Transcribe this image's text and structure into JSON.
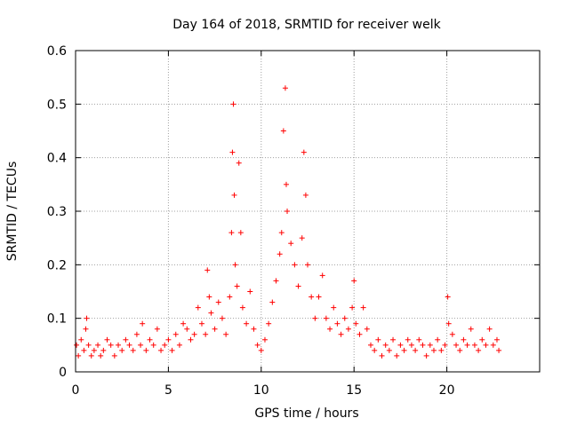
{
  "chart_data": {
    "type": "scatter",
    "title": "Day 164 of 2018, SRMTID for receiver welk",
    "xlabel": "GPS time / hours",
    "ylabel": "SRMTID / TECUs",
    "xlim": [
      0,
      25
    ],
    "ylim": [
      0,
      0.6
    ],
    "xticks": [
      0,
      5,
      10,
      15,
      20
    ],
    "xtick_labels": [
      "0",
      "5",
      "10",
      "15",
      "20"
    ],
    "yticks": [
      0,
      0.1,
      0.2,
      0.3,
      0.4,
      0.5,
      0.6
    ],
    "ytick_labels": [
      "0",
      "0.1",
      "0.2",
      "0.3",
      "0.4",
      "0.5",
      "0.6"
    ],
    "grid": true,
    "marker": "+",
    "color": "#ff0000",
    "series": [
      {
        "name": "SRMTID",
        "points": [
          [
            0.05,
            0.05
          ],
          [
            0.15,
            0.03
          ],
          [
            0.3,
            0.06
          ],
          [
            0.45,
            0.04
          ],
          [
            0.55,
            0.08
          ],
          [
            0.6,
            0.1
          ],
          [
            0.7,
            0.05
          ],
          [
            0.85,
            0.03
          ],
          [
            1.0,
            0.04
          ],
          [
            1.2,
            0.05
          ],
          [
            1.35,
            0.03
          ],
          [
            1.5,
            0.04
          ],
          [
            1.7,
            0.06
          ],
          [
            1.9,
            0.05
          ],
          [
            2.1,
            0.03
          ],
          [
            2.3,
            0.05
          ],
          [
            2.5,
            0.04
          ],
          [
            2.7,
            0.06
          ],
          [
            2.9,
            0.05
          ],
          [
            3.1,
            0.04
          ],
          [
            3.3,
            0.07
          ],
          [
            3.5,
            0.05
          ],
          [
            3.6,
            0.09
          ],
          [
            3.8,
            0.04
          ],
          [
            4.0,
            0.06
          ],
          [
            4.2,
            0.05
          ],
          [
            4.4,
            0.08
          ],
          [
            4.6,
            0.04
          ],
          [
            4.8,
            0.05
          ],
          [
            5.0,
            0.06
          ],
          [
            5.2,
            0.04
          ],
          [
            5.4,
            0.07
          ],
          [
            5.6,
            0.05
          ],
          [
            5.8,
            0.09
          ],
          [
            6.0,
            0.08
          ],
          [
            6.2,
            0.06
          ],
          [
            6.4,
            0.07
          ],
          [
            6.6,
            0.12
          ],
          [
            6.8,
            0.09
          ],
          [
            7.0,
            0.07
          ],
          [
            7.1,
            0.19
          ],
          [
            7.2,
            0.14
          ],
          [
            7.3,
            0.11
          ],
          [
            7.5,
            0.08
          ],
          [
            7.7,
            0.13
          ],
          [
            7.9,
            0.1
          ],
          [
            8.1,
            0.07
          ],
          [
            8.3,
            0.14
          ],
          [
            8.4,
            0.26
          ],
          [
            8.45,
            0.41
          ],
          [
            8.5,
            0.5
          ],
          [
            8.55,
            0.33
          ],
          [
            8.6,
            0.2
          ],
          [
            8.7,
            0.16
          ],
          [
            8.8,
            0.39
          ],
          [
            8.9,
            0.26
          ],
          [
            9.0,
            0.12
          ],
          [
            9.2,
            0.09
          ],
          [
            9.4,
            0.15
          ],
          [
            9.6,
            0.08
          ],
          [
            9.8,
            0.05
          ],
          [
            10.0,
            0.04
          ],
          [
            10.2,
            0.06
          ],
          [
            10.4,
            0.09
          ],
          [
            10.6,
            0.13
          ],
          [
            10.8,
            0.17
          ],
          [
            11.0,
            0.22
          ],
          [
            11.1,
            0.26
          ],
          [
            11.2,
            0.45
          ],
          [
            11.3,
            0.53
          ],
          [
            11.35,
            0.35
          ],
          [
            11.4,
            0.3
          ],
          [
            11.6,
            0.24
          ],
          [
            11.8,
            0.2
          ],
          [
            12.0,
            0.16
          ],
          [
            12.2,
            0.25
          ],
          [
            12.3,
            0.41
          ],
          [
            12.4,
            0.33
          ],
          [
            12.5,
            0.2
          ],
          [
            12.7,
            0.14
          ],
          [
            12.9,
            0.1
          ],
          [
            13.1,
            0.14
          ],
          [
            13.3,
            0.18
          ],
          [
            13.5,
            0.1
          ],
          [
            13.7,
            0.08
          ],
          [
            13.9,
            0.12
          ],
          [
            14.1,
            0.09
          ],
          [
            14.3,
            0.07
          ],
          [
            14.5,
            0.1
          ],
          [
            14.7,
            0.08
          ],
          [
            14.9,
            0.12
          ],
          [
            15.0,
            0.17
          ],
          [
            15.1,
            0.09
          ],
          [
            15.3,
            0.07
          ],
          [
            15.5,
            0.12
          ],
          [
            15.7,
            0.08
          ],
          [
            15.9,
            0.05
          ],
          [
            16.1,
            0.04
          ],
          [
            16.3,
            0.06
          ],
          [
            16.5,
            0.03
          ],
          [
            16.7,
            0.05
          ],
          [
            16.9,
            0.04
          ],
          [
            17.1,
            0.06
          ],
          [
            17.3,
            0.03
          ],
          [
            17.5,
            0.05
          ],
          [
            17.7,
            0.04
          ],
          [
            17.9,
            0.06
          ],
          [
            18.1,
            0.05
          ],
          [
            18.3,
            0.04
          ],
          [
            18.5,
            0.06
          ],
          [
            18.7,
            0.05
          ],
          [
            18.9,
            0.03
          ],
          [
            19.1,
            0.05
          ],
          [
            19.3,
            0.04
          ],
          [
            19.5,
            0.06
          ],
          [
            19.7,
            0.04
          ],
          [
            19.9,
            0.05
          ],
          [
            20.05,
            0.14
          ],
          [
            20.1,
            0.09
          ],
          [
            20.3,
            0.07
          ],
          [
            20.5,
            0.05
          ],
          [
            20.7,
            0.04
          ],
          [
            20.9,
            0.06
          ],
          [
            21.1,
            0.05
          ],
          [
            21.3,
            0.08
          ],
          [
            21.5,
            0.05
          ],
          [
            21.7,
            0.04
          ],
          [
            21.9,
            0.06
          ],
          [
            22.1,
            0.05
          ],
          [
            22.3,
            0.08
          ],
          [
            22.5,
            0.05
          ],
          [
            22.7,
            0.06
          ],
          [
            22.8,
            0.04
          ]
        ]
      }
    ]
  }
}
